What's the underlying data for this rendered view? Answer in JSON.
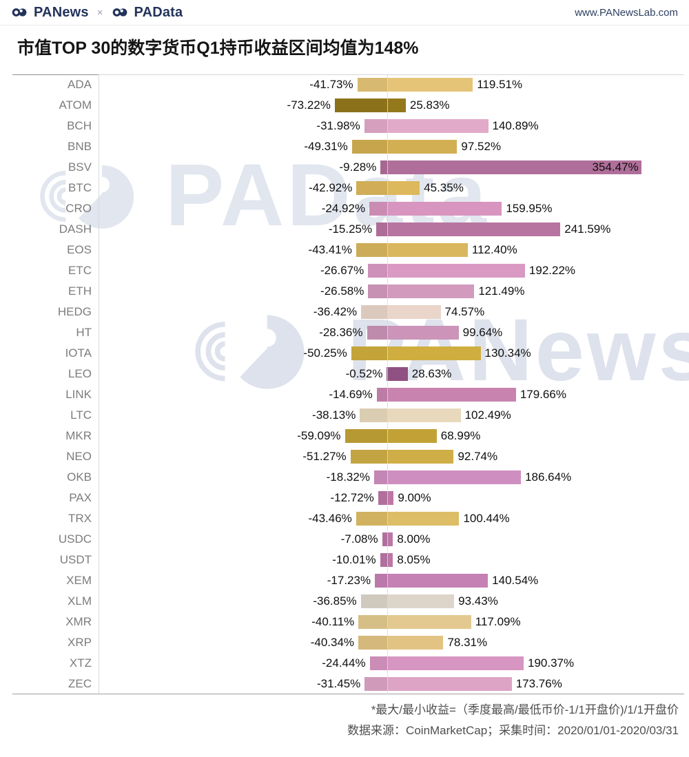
{
  "header": {
    "logo_panews": "PANews",
    "logo_separator": "×",
    "logo_padata": "PAData",
    "url": "www.PANewsLab.com"
  },
  "title": "市值TOP 30的数字货币Q1持币收益区间均值为148%",
  "watermarks": [
    "PAData",
    "PANews"
  ],
  "chart_data": {
    "type": "bar",
    "variant": "horizontal-range",
    "title": "市值TOP 30的数字货币Q1持币收益区间均值为148%",
    "value_unit": "%",
    "xlim": [
      -90,
      380
    ],
    "zero_line": 0,
    "grid": "zero-line-only",
    "legend": "none",
    "categories": [
      "ADA",
      "ATOM",
      "BCH",
      "BNB",
      "BSV",
      "BTC",
      "CRO",
      "DASH",
      "EOS",
      "ETC",
      "ETH",
      "HEDG",
      "HT",
      "IOTA",
      "LEO",
      "LINK",
      "LTC",
      "MKR",
      "NEO",
      "OKB",
      "PAX",
      "TRX",
      "USDC",
      "USDT",
      "XEM",
      "XLM",
      "XMR",
      "XRP",
      "XTZ",
      "ZEC"
    ],
    "rows": [
      {
        "label": "ADA",
        "min": -41.73,
        "max": 119.51,
        "color": "#e5c478"
      },
      {
        "label": "ATOM",
        "min": -73.22,
        "max": 25.83,
        "color": "#94781c"
      },
      {
        "label": "BCH",
        "min": -31.98,
        "max": 140.89,
        "color": "#e2aac9"
      },
      {
        "label": "BNB",
        "min": -49.31,
        "max": 97.52,
        "color": "#d2af52"
      },
      {
        "label": "BSV",
        "min": -9.28,
        "max": 354.47,
        "color": "#b06f9a"
      },
      {
        "label": "BTC",
        "min": -42.92,
        "max": 45.35,
        "color": "#ddb85c"
      },
      {
        "label": "CRO",
        "min": -24.92,
        "max": 159.95,
        "color": "#d795bf"
      },
      {
        "label": "DASH",
        "min": -15.25,
        "max": 241.59,
        "color": "#b874a0"
      },
      {
        "label": "EOS",
        "min": -43.41,
        "max": 112.4,
        "color": "#d9b75f"
      },
      {
        "label": "ETC",
        "min": -26.67,
        "max": 192.22,
        "color": "#d999c3"
      },
      {
        "label": "ETH",
        "min": -26.58,
        "max": 121.49,
        "color": "#d29abd"
      },
      {
        "label": "HEDG",
        "min": -36.42,
        "max": 74.57,
        "color": "#e9d5ca"
      },
      {
        "label": "HT",
        "min": -28.36,
        "max": 99.64,
        "color": "#cb94b8"
      },
      {
        "label": "IOTA",
        "min": -50.25,
        "max": 130.34,
        "color": "#cfae3f"
      },
      {
        "label": "LEO",
        "min": -0.52,
        "max": 28.63,
        "color": "#8f5181"
      },
      {
        "label": "LINK",
        "min": -14.69,
        "max": 179.66,
        "color": "#c884af"
      },
      {
        "label": "LTC",
        "min": -38.13,
        "max": 102.49,
        "color": "#e8d9bd"
      },
      {
        "label": "MKR",
        "min": -59.09,
        "max": 68.99,
        "color": "#c2a236"
      },
      {
        "label": "NEO",
        "min": -51.27,
        "max": 92.74,
        "color": "#cfae47"
      },
      {
        "label": "OKB",
        "min": -18.32,
        "max": 186.64,
        "color": "#ce8fc0"
      },
      {
        "label": "PAX",
        "min": -12.72,
        "max": 9.0,
        "color": "#bc77a6"
      },
      {
        "label": "TRX",
        "min": -43.46,
        "max": 100.44,
        "color": "#ddbd66"
      },
      {
        "label": "USDC",
        "min": -7.08,
        "max": 8.0,
        "color": "#bc77a6"
      },
      {
        "label": "USDT",
        "min": -10.01,
        "max": 8.05,
        "color": "#bc77a6"
      },
      {
        "label": "XEM",
        "min": -17.23,
        "max": 140.54,
        "color": "#c581b4"
      },
      {
        "label": "XLM",
        "min": -36.85,
        "max": 93.43,
        "color": "#ddd5c9"
      },
      {
        "label": "XMR",
        "min": -40.11,
        "max": 117.09,
        "color": "#e3c98f"
      },
      {
        "label": "XRP",
        "min": -40.34,
        "max": 78.31,
        "color": "#e2c383"
      },
      {
        "label": "XTZ",
        "min": -24.44,
        "max": 190.37,
        "color": "#d795c1"
      },
      {
        "label": "ZEC",
        "min": -31.45,
        "max": 173.76,
        "color": "#dda4c6"
      }
    ]
  },
  "footer": {
    "note": "*最大/最小收益=（季度最高/最低币价-1/1开盘价)/1/1开盘价",
    "source": "数据来源：CoinMarketCap；采集时间：2020/01/01-2020/03/31"
  },
  "colors": {
    "brand_navy": "#22335b",
    "watermark": "#e1e6ef",
    "gridline": "#d9d9d9",
    "coin_label": "#7c7c7c",
    "value_label": "#0f0f0f"
  }
}
